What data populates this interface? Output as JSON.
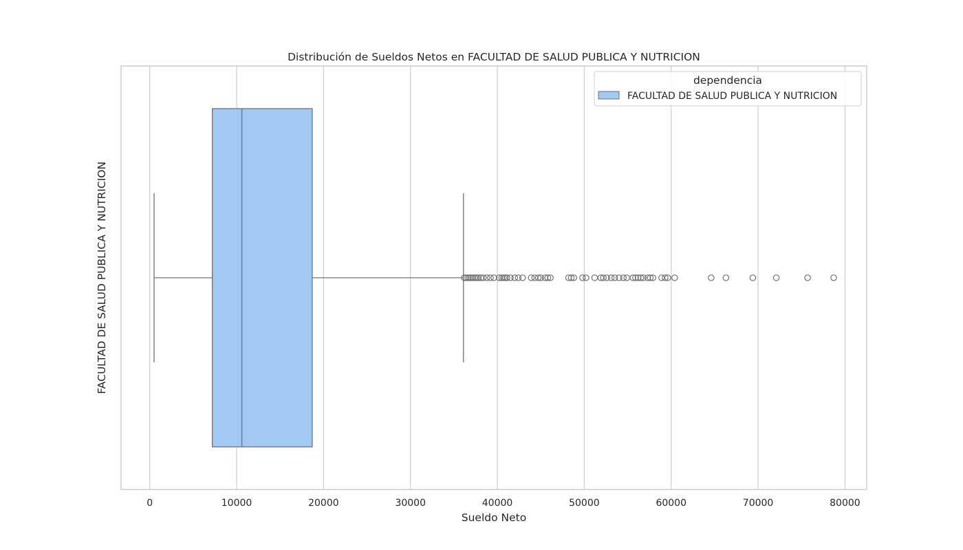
{
  "chart_data": {
    "type": "boxplot",
    "orientation": "horizontal",
    "title": "Distribución de Sueldos Netos en FACULTAD DE SALUD PUBLICA Y NUTRICION",
    "xlabel": "Sueldo Neto",
    "ylabel": "FACULTAD DE SALUD PUBLICA Y NUTRICION",
    "xlim": [
      -3300,
      82500
    ],
    "xticks": [
      0,
      10000,
      20000,
      30000,
      40000,
      50000,
      60000,
      70000,
      80000
    ],
    "xtick_labels": [
      "0",
      "10000",
      "20000",
      "30000",
      "40000",
      "50000",
      "60000",
      "70000",
      "80000"
    ],
    "grid": true,
    "legend": {
      "title": "dependencia",
      "placement": "top-right",
      "entries": [
        "FACULTAD DE SALUD PUBLICA Y NUTRICION"
      ]
    },
    "series": [
      {
        "name": "FACULTAD DE SALUD PUBLICA Y NUTRICION",
        "color": "#a1c9f4",
        "edge_color": "#707070",
        "whisker_low": 500,
        "q1": 7200,
        "median": 10600,
        "q3": 18700,
        "whisker_high": 36100,
        "outliers": [
          36200,
          36400,
          36600,
          36800,
          37000,
          37200,
          37400,
          37600,
          37800,
          38100,
          38400,
          38800,
          39200,
          39600,
          40200,
          40500,
          40700,
          40900,
          41100,
          41500,
          42000,
          42400,
          42900,
          43900,
          44300,
          44700,
          45000,
          45500,
          45800,
          46100,
          48200,
          48500,
          48800,
          49800,
          50200,
          51200,
          51900,
          52200,
          52600,
          53100,
          53500,
          54000,
          54500,
          54900,
          55600,
          55900,
          56200,
          56500,
          56800,
          57300,
          57600,
          57900,
          58900,
          59300,
          59600,
          60400,
          64600,
          66300,
          69400,
          72100,
          75700,
          78700
        ]
      }
    ]
  }
}
